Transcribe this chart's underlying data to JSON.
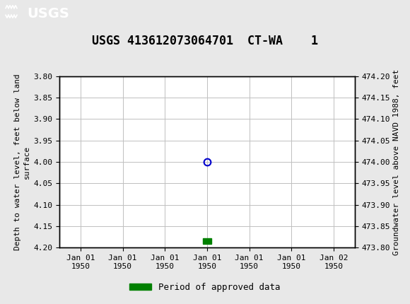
{
  "title": "USGS 413612073064701  CT-WA    1",
  "ylabel_left": "Depth to water level, feet below land\nsurface",
  "ylabel_right": "Groundwater level above NAVD 1988, feet",
  "ylim_left_top": 3.8,
  "ylim_left_bottom": 4.2,
  "ylim_right_top": 474.2,
  "ylim_right_bottom": 473.8,
  "yticks_left": [
    3.8,
    3.85,
    3.9,
    3.95,
    4.0,
    4.05,
    4.1,
    4.15,
    4.2
  ],
  "yticks_right": [
    474.2,
    474.15,
    474.1,
    474.05,
    474.0,
    473.95,
    473.9,
    473.85,
    473.8
  ],
  "data_point_x": 3.0,
  "data_point_y": 4.0,
  "bar_x": 3.0,
  "bar_y": 4.185,
  "bg_color": "#e8e8e8",
  "plot_bg_color": "#ffffff",
  "header_color": "#1a6b3c",
  "grid_color": "#c0c0c0",
  "circle_color": "#0000cc",
  "bar_color": "#008000",
  "font_family": "monospace",
  "title_fontsize": 12,
  "axis_fontsize": 8,
  "tick_fontsize": 8,
  "legend_fontsize": 9,
  "x_ticks": [
    0,
    1,
    2,
    3,
    4,
    5,
    6
  ],
  "x_labels": [
    "Jan 01\n1950",
    "Jan 01\n1950",
    "Jan 01\n1950",
    "Jan 01\n1950",
    "Jan 01\n1950",
    "Jan 01\n1950",
    "Jan 02\n1950"
  ],
  "legend_label": "Period of approved data"
}
